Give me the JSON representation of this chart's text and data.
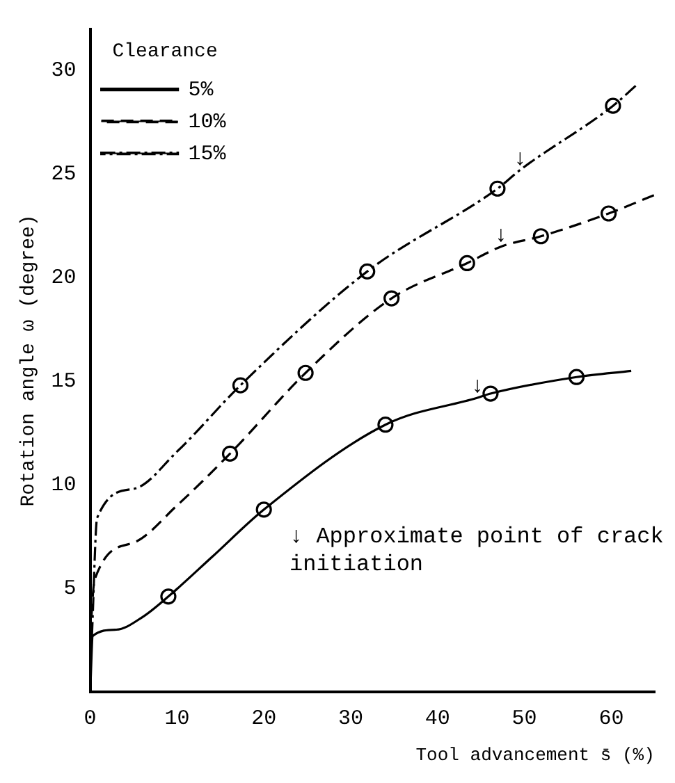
{
  "chart_data": {
    "type": "line",
    "xlabel": "Tool advancement s̄ (%)",
    "ylabel": "Rotation angle ω (degree)",
    "legend_title": "Clearance",
    "xlim": [
      0,
      65
    ],
    "ylim": [
      0,
      32
    ],
    "xticks": [
      0,
      10,
      20,
      30,
      40,
      50,
      60
    ],
    "yticks": [
      5,
      10,
      15,
      20,
      25,
      30
    ],
    "grid": false,
    "legend": "top left",
    "series": [
      {
        "name": "5%",
        "color": "#000000",
        "line_style": "solid",
        "marker": "none",
        "x": [
          0,
          0.3,
          3,
          6,
          9,
          14,
          20,
          34,
          44.6,
          46.1,
          56,
          62.3
        ],
        "values": [
          0,
          2.7,
          3.0,
          3.6,
          4.6,
          6.5,
          8.8,
          12.9,
          14.2,
          14.4,
          15.2,
          15.5
        ]
      },
      {
        "name": "10%",
        "color": "#000000",
        "line_style": "dashed",
        "marker": "none",
        "x": [
          0,
          0.5,
          5,
          10,
          16.1,
          24.8,
          34.7,
          43.4,
          47.3,
          51.9,
          59.7,
          65
        ],
        "values": [
          2.7,
          5.4,
          7.2,
          9.0,
          11.5,
          15.4,
          19.0,
          20.7,
          21.5,
          22.0,
          23.1,
          24.0
        ]
      },
      {
        "name": "15%",
        "color": "#000000",
        "line_style": "dotted",
        "marker": "none",
        "x": [
          0.2,
          0.8,
          5,
          10,
          17.3,
          31.9,
          46.9,
          49.5,
          60.2,
          62.9
        ],
        "values": [
          2.7,
          8.4,
          9.8,
          11.6,
          14.8,
          20.3,
          24.3,
          25.2,
          28.3,
          29.3
        ]
      },
      {
        "type": "scatter",
        "color": "#000000",
        "marker": "circle",
        "x": [
          9,
          20,
          34,
          46.1,
          56
        ],
        "values": [
          4.6,
          8.8,
          12.9,
          14.4,
          15.2
        ]
      },
      {
        "type": "scatter",
        "color": "#000000",
        "marker": "circle",
        "x": [
          16.1,
          24.8,
          34.7,
          43.4,
          51.9,
          59.7
        ],
        "values": [
          11.5,
          15.4,
          19.0,
          20.7,
          22.0,
          23.1
        ]
      },
      {
        "type": "scatter",
        "color": "#000000",
        "marker": "circle",
        "x": [
          17.3,
          31.9,
          46.9,
          60.2
        ],
        "values": [
          14.8,
          20.3,
          24.3,
          28.3
        ]
      }
    ],
    "annotations": [
      {
        "text": "↓",
        "x": 44.6,
        "y": 14.2
      },
      {
        "text": "↓",
        "x": 47.3,
        "y": 21.5
      },
      {
        "text": "↓",
        "x": 49.5,
        "y": 25.2
      },
      "↓ Approximate point of crack initiation"
    ]
  }
}
